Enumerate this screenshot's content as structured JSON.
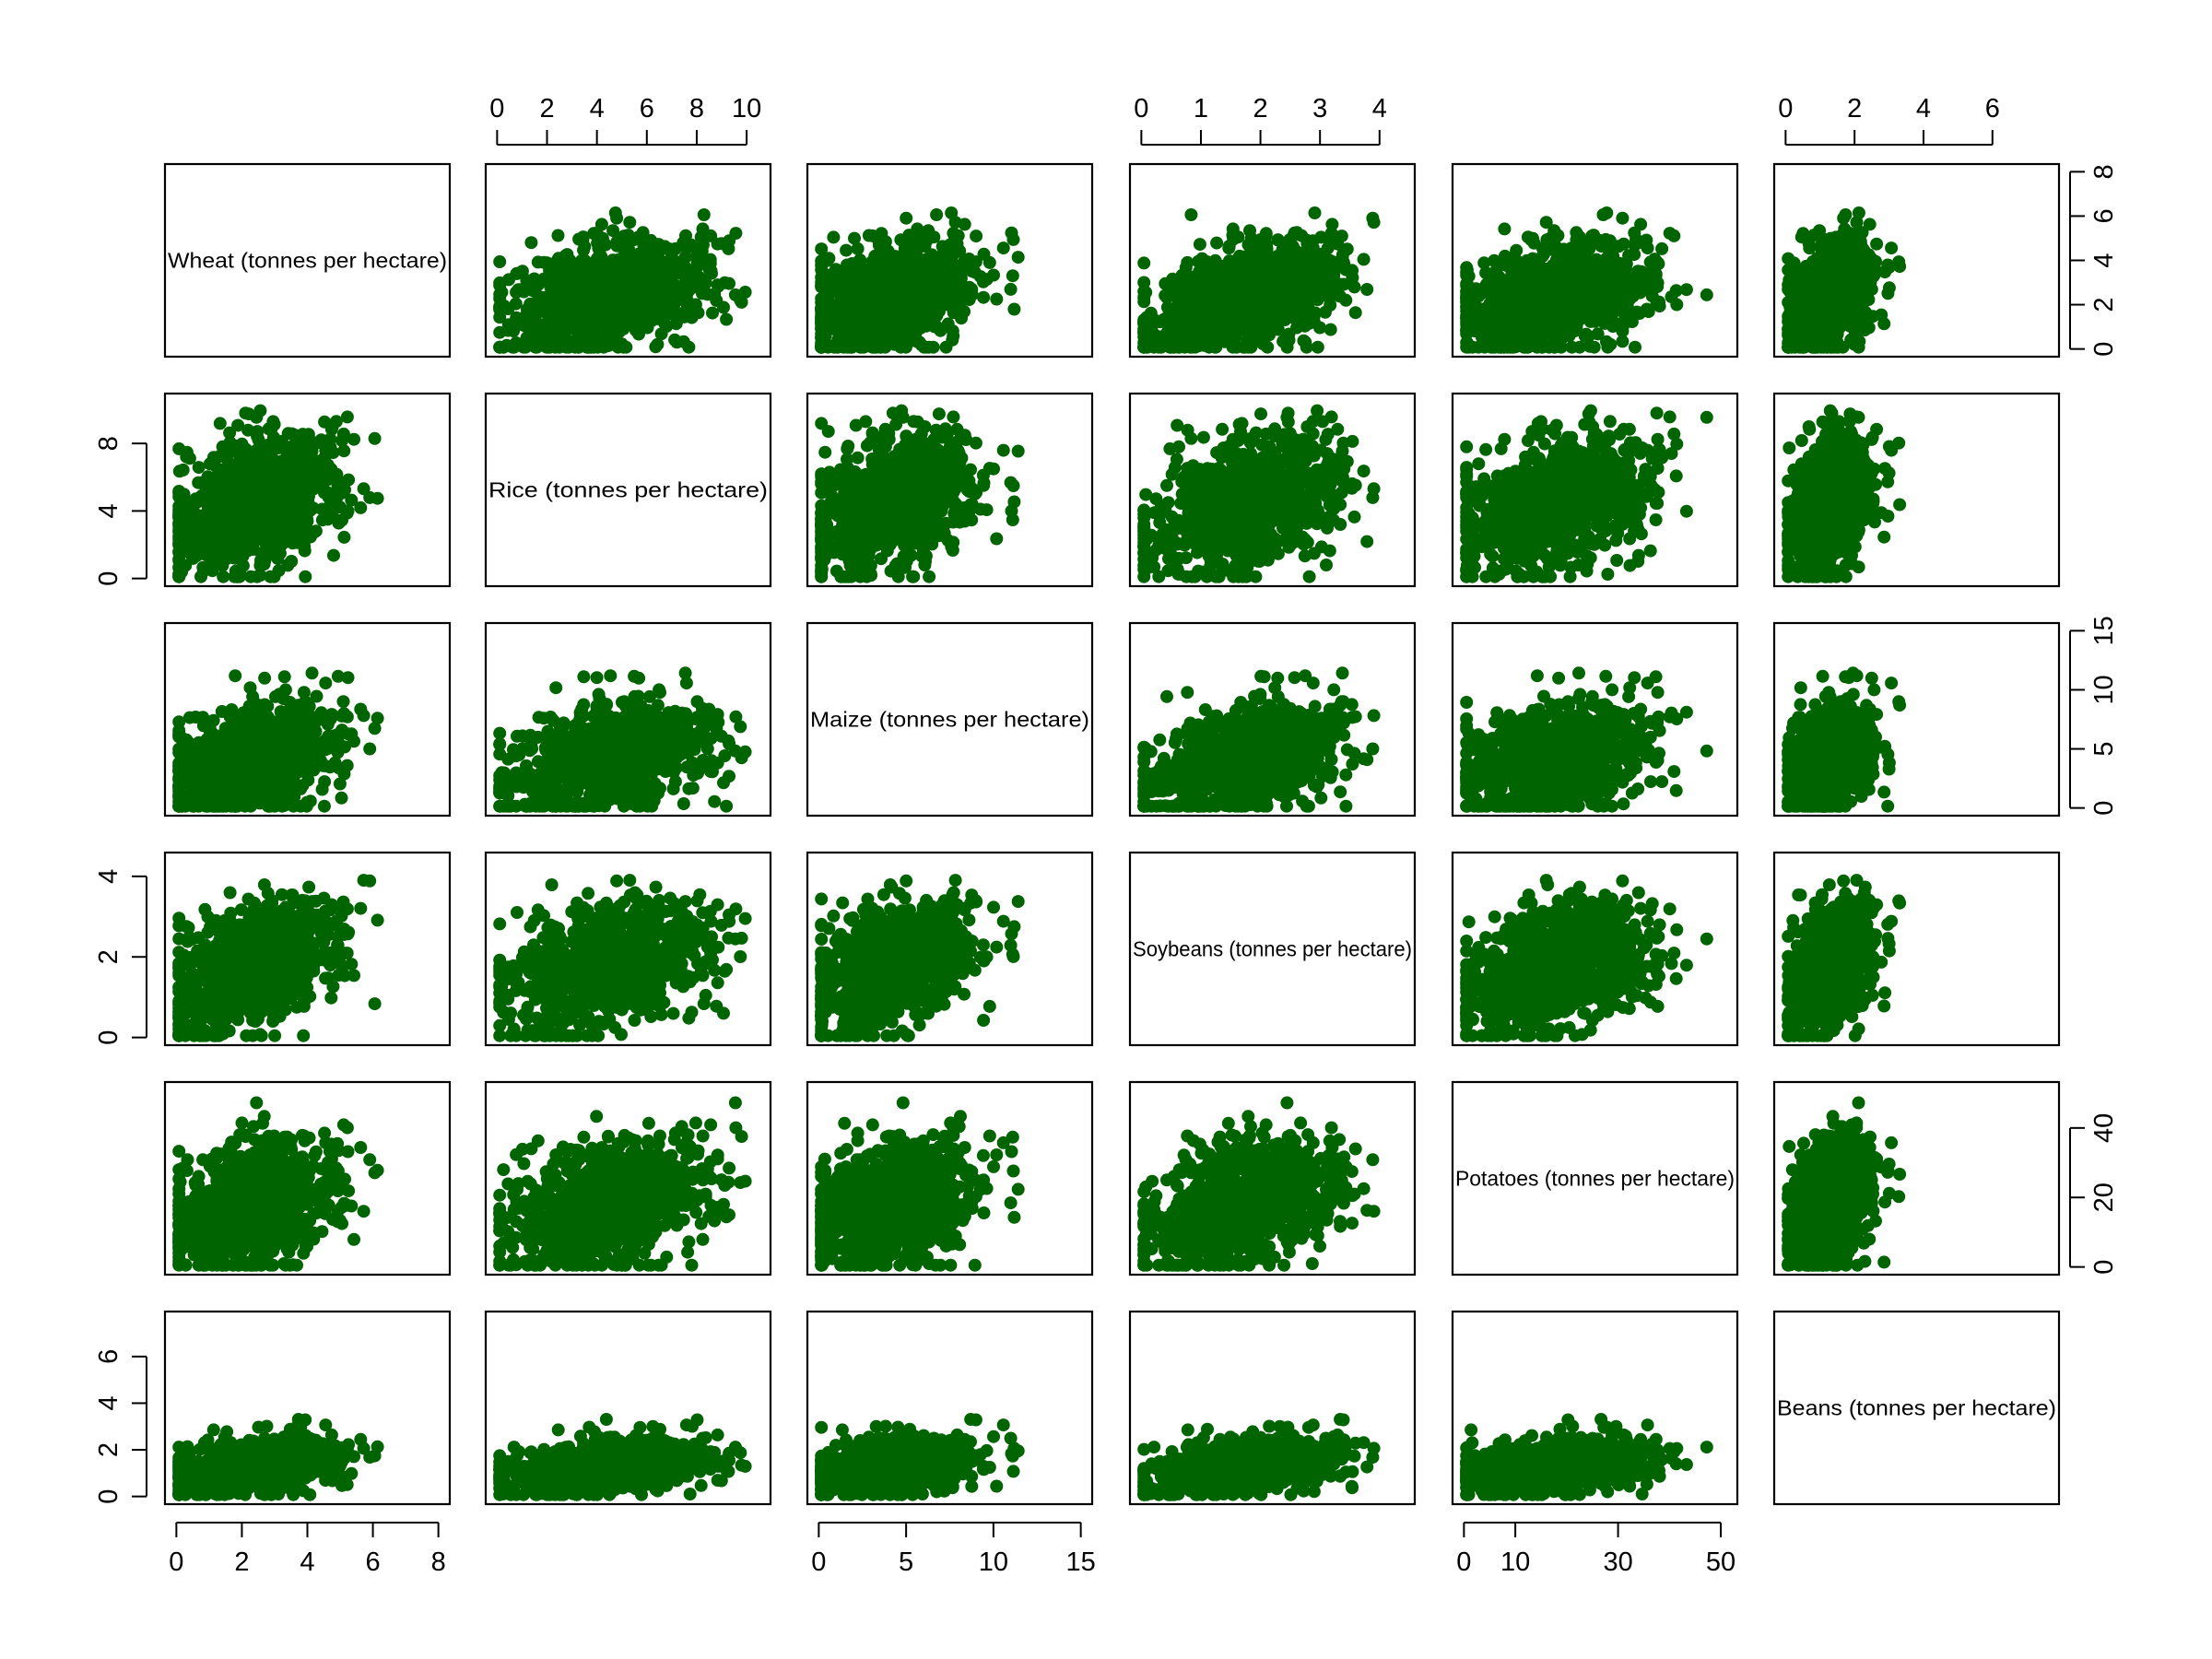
{
  "chart_data": {
    "type": "scatter",
    "layout": "scatterplot-matrix",
    "point_color": "#006400",
    "variables": [
      {
        "name": "Wheat (tonnes per hectare)",
        "range": [
          0,
          8
        ],
        "ticks": [
          0,
          2,
          4,
          6,
          8
        ]
      },
      {
        "name": "Rice (tonnes per hectare)",
        "range": [
          0,
          10.5
        ],
        "ticks": [
          0,
          2,
          4,
          6,
          8,
          10
        ],
        "ticks_left": [
          0,
          4,
          8
        ]
      },
      {
        "name": "Maize (tonnes per hectare)",
        "range": [
          0,
          15
        ],
        "ticks": [
          0,
          5,
          10,
          15
        ]
      },
      {
        "name": "Soybeans (tonnes per hectare)",
        "range": [
          0,
          4.4
        ],
        "ticks": [
          0,
          1,
          2,
          3,
          4
        ],
        "ticks_left": [
          0,
          2,
          4
        ]
      },
      {
        "name": "Potatoes (tonnes per hectare)",
        "range": [
          0,
          51
        ],
        "ticks": [
          0,
          10,
          20,
          30,
          40,
          50
        ],
        "ticks_bottom": [
          0,
          10,
          30,
          50
        ],
        "ticks_right": [
          0,
          20,
          40
        ]
      },
      {
        "name": "Beans (tonnes per hectare)",
        "range": [
          0,
          7.6
        ],
        "ticks": [
          0,
          2,
          4,
          6
        ]
      }
    ],
    "cluster_centers": [
      2.4,
      4.5,
      4.0,
      1.7,
      18,
      1.3
    ],
    "cluster_spread": [
      1.3,
      2.0,
      2.4,
      0.8,
      9,
      0.6
    ],
    "n_points": 900,
    "grid": false,
    "legend": "none"
  }
}
